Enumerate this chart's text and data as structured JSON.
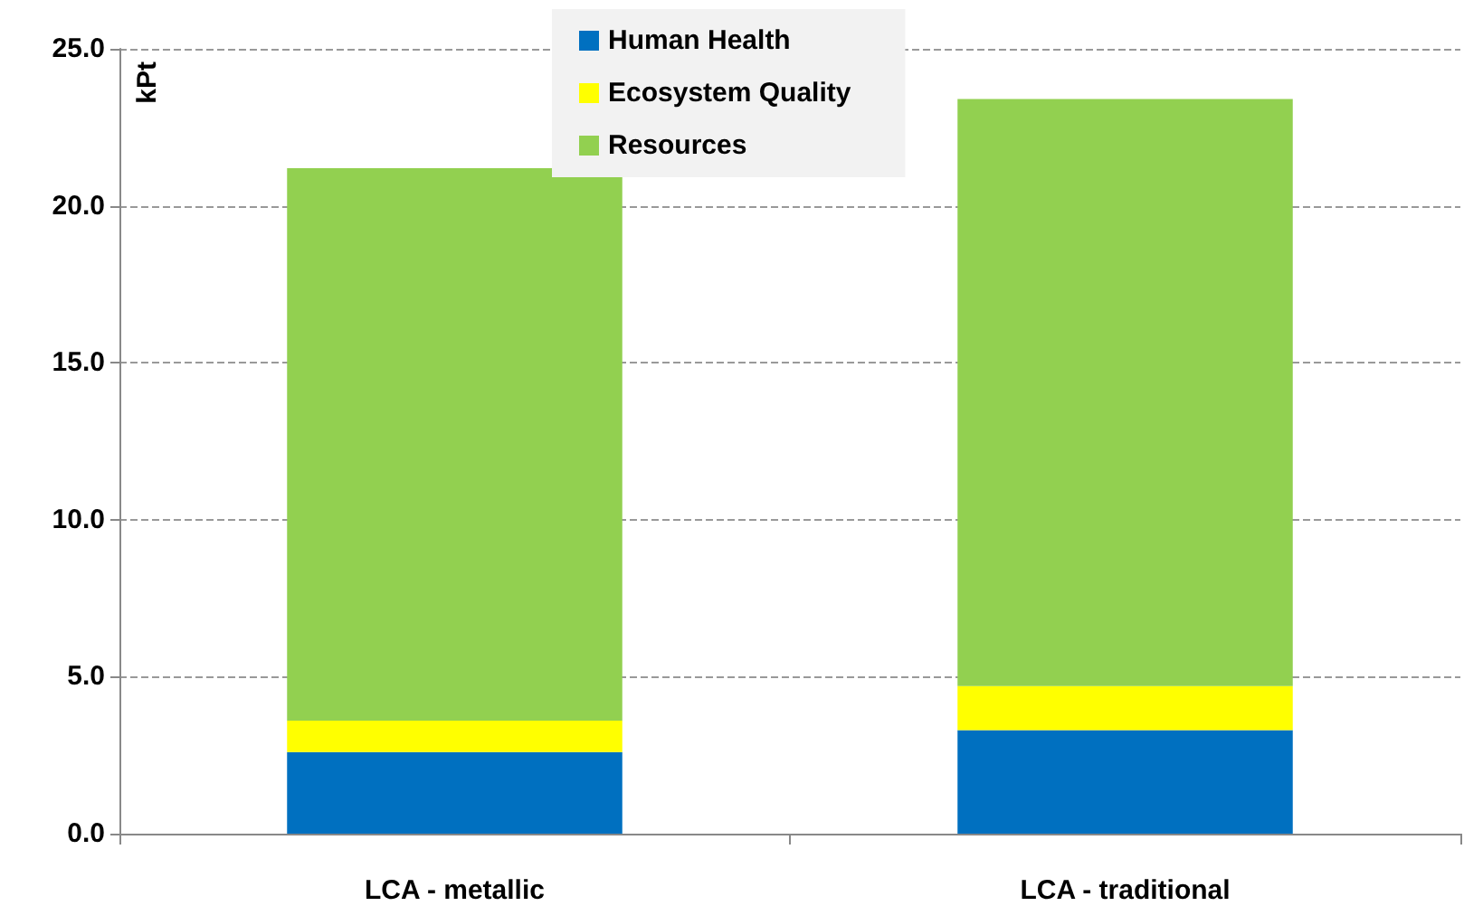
{
  "chart_data": {
    "type": "bar",
    "stacked": true,
    "ylabel": "kPt",
    "categories": [
      "LCA - metallic",
      "LCA - traditional"
    ],
    "series": [
      {
        "name": "Human Health",
        "color": "#0070c0",
        "values": [
          2.6,
          3.3
        ]
      },
      {
        "name": "Ecosystem Quality",
        "color": "#ffff00",
        "values": [
          1.0,
          1.4
        ]
      },
      {
        "name": "Resources",
        "color": "#92d050",
        "values": [
          17.6,
          18.7
        ]
      }
    ],
    "ylim": [
      0,
      25
    ],
    "yticks": [
      {
        "value": 0,
        "label": "0.0"
      },
      {
        "value": 5,
        "label": "5.0"
      },
      {
        "value": 10,
        "label": "10.0"
      },
      {
        "value": 15,
        "label": "15.0"
      },
      {
        "value": 20,
        "label": "20.0"
      },
      {
        "value": 25,
        "label": "25.0"
      }
    ],
    "grid": "y",
    "legend": "top"
  }
}
